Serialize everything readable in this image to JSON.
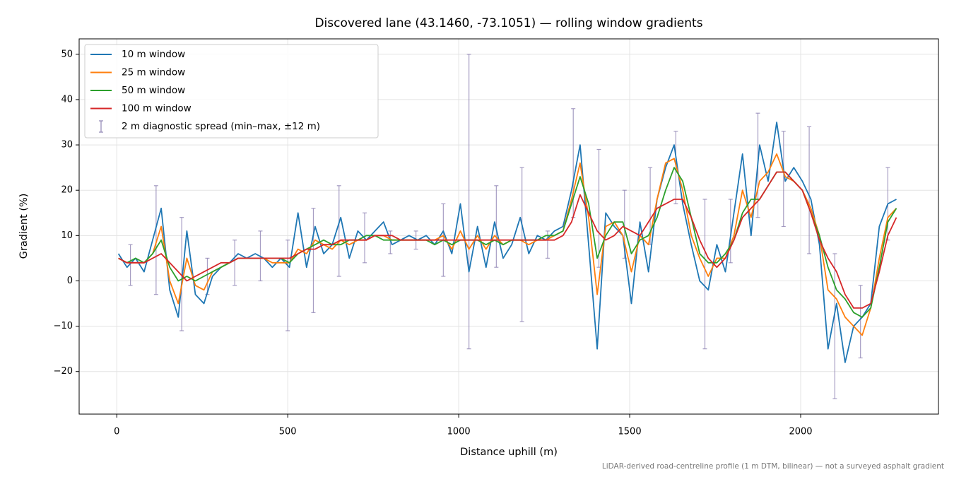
{
  "chart_data": {
    "type": "line",
    "title": "Discovered lane (43.1460, -73.1051) — rolling window gradients",
    "x_label": "Distance uphill (m)",
    "y_label": "Gradient (%)",
    "footnote": "LiDAR-derived road-centreline profile (1 m DTM, bilinear) — not a surveyed asphalt gradient",
    "xlim": [
      -110,
      2403
    ],
    "ylim": [
      -29.4,
      53.4
    ],
    "xticks": [
      0,
      500,
      1000,
      1500,
      2000
    ],
    "yticks": [
      {
        "value": -20,
        "label": "−20"
      },
      {
        "value": -10,
        "label": "−10"
      },
      0,
      10,
      20,
      30,
      40,
      50
    ],
    "grid": true,
    "legend": "upper left",
    "x": [
      5,
      30,
      55,
      80,
      105,
      130,
      155,
      180,
      205,
      230,
      255,
      280,
      305,
      330,
      355,
      380,
      405,
      430,
      455,
      480,
      505,
      530,
      555,
      580,
      605,
      630,
      655,
      680,
      705,
      730,
      755,
      780,
      805,
      830,
      855,
      880,
      905,
      930,
      955,
      980,
      1005,
      1030,
      1055,
      1080,
      1105,
      1130,
      1155,
      1180,
      1205,
      1230,
      1255,
      1280,
      1305,
      1330,
      1355,
      1380,
      1405,
      1430,
      1455,
      1480,
      1505,
      1530,
      1555,
      1580,
      1605,
      1630,
      1655,
      1680,
      1705,
      1730,
      1755,
      1780,
      1805,
      1830,
      1855,
      1880,
      1905,
      1930,
      1955,
      1980,
      2005,
      2030,
      2055,
      2080,
      2105,
      2130,
      2155,
      2180,
      2205,
      2230,
      2255,
      2280
    ],
    "series": [
      {
        "name": "10 m window",
        "color": "#1f77b4",
        "values": [
          6,
          3,
          5,
          2,
          9,
          16,
          -2,
          -8,
          11,
          -3,
          -5,
          1,
          3,
          4,
          6,
          5,
          6,
          5,
          3,
          5,
          3,
          15,
          3,
          12,
          6,
          8,
          14,
          5,
          11,
          9,
          11,
          13,
          8,
          9,
          10,
          9,
          10,
          8,
          11,
          6,
          17,
          2,
          12,
          3,
          13,
          5,
          8,
          14,
          6,
          10,
          9,
          11,
          12,
          20,
          30,
          8,
          -15,
          15,
          12,
          10,
          -5,
          13,
          2,
          18,
          25,
          30,
          17,
          8,
          0,
          -2,
          8,
          2,
          15,
          28,
          10,
          30,
          22,
          35,
          22,
          25,
          22,
          18,
          8,
          -15,
          -5,
          -18,
          -10,
          -8,
          -5,
          12,
          17,
          18
        ]
      },
      {
        "name": "25 m window",
        "color": "#ff7f0e",
        "values": [
          5,
          4,
          4,
          4,
          6,
          12,
          0,
          -5,
          5,
          -1,
          -2,
          2,
          3,
          4,
          5,
          5,
          5,
          5,
          4,
          4,
          4,
          7,
          6,
          9,
          8,
          7,
          9,
          8,
          9,
          9,
          10,
          10,
          9,
          9,
          9,
          9,
          9,
          9,
          10,
          7,
          11,
          7,
          10,
          7,
          10,
          8,
          9,
          9,
          8,
          9,
          9,
          10,
          11,
          18,
          26,
          14,
          -3,
          12,
          13,
          10,
          2,
          10,
          8,
          18,
          26,
          27,
          20,
          10,
          5,
          1,
          5,
          5,
          10,
          20,
          14,
          22,
          24,
          28,
          23,
          22,
          20,
          16,
          10,
          -2,
          -4,
          -8,
          -10,
          -12,
          -6,
          5,
          14,
          16
        ]
      },
      {
        "name": "50 m window",
        "color": "#2ca02c",
        "values": [
          5,
          4,
          5,
          4,
          6,
          9,
          3,
          0,
          1,
          0,
          1,
          2,
          3,
          4,
          5,
          5,
          5,
          5,
          5,
          5,
          4,
          6,
          7,
          8,
          9,
          8,
          8,
          9,
          9,
          10,
          10,
          9,
          9,
          9,
          9,
          9,
          9,
          8,
          9,
          8,
          9,
          9,
          9,
          8,
          9,
          8,
          9,
          9,
          9,
          9,
          10,
          10,
          11,
          17,
          23,
          17,
          5,
          10,
          13,
          13,
          6,
          9,
          10,
          14,
          20,
          25,
          22,
          14,
          6,
          4,
          4,
          6,
          9,
          15,
          18,
          18,
          21,
          24,
          24,
          22,
          20,
          15,
          10,
          3,
          -2,
          -4,
          -7,
          -8,
          -6,
          3,
          13,
          16
        ]
      },
      {
        "name": "100 m window",
        "color": "#d62728",
        "values": [
          5,
          4,
          4,
          4,
          5,
          6,
          4,
          2,
          0,
          1,
          2,
          3,
          4,
          4,
          5,
          5,
          5,
          5,
          5,
          5,
          5,
          6,
          7,
          7,
          8,
          8,
          9,
          9,
          9,
          9,
          10,
          10,
          10,
          9,
          9,
          9,
          9,
          9,
          9,
          9,
          9,
          9,
          9,
          9,
          9,
          9,
          9,
          9,
          9,
          9,
          9,
          9,
          10,
          13,
          19,
          15,
          11,
          9,
          10,
          12,
          11,
          10,
          13,
          16,
          17,
          18,
          18,
          14,
          9,
          5,
          3,
          5,
          9,
          14,
          16,
          18,
          21,
          24,
          24,
          22,
          20,
          15,
          9,
          5,
          2,
          -3,
          -6,
          -6,
          -5,
          2,
          10,
          14
        ]
      }
    ],
    "errorbars": {
      "name": "2 m diagnostic spread (min–max, ±12 m)",
      "color": "#9085b5",
      "x": [
        40,
        115,
        190,
        265,
        345,
        420,
        500,
        575,
        650,
        725,
        800,
        875,
        955,
        1030,
        1110,
        1185,
        1260,
        1335,
        1410,
        1485,
        1560,
        1635,
        1720,
        1795,
        1875,
        1950,
        2025,
        2100,
        2175,
        2255
      ],
      "low": [
        -1,
        -3,
        -11,
        -3,
        -1,
        0,
        -11,
        -7,
        1,
        4,
        6,
        7,
        1,
        -15,
        3,
        -9,
        5,
        14,
        3,
        5,
        8,
        17,
        -15,
        4,
        14,
        12,
        6,
        -26,
        -17,
        9
      ],
      "high": [
        8,
        21,
        14,
        5,
        9,
        11,
        9,
        16,
        21,
        15,
        11,
        11,
        17,
        50,
        21,
        25,
        11,
        38,
        29,
        20,
        25,
        33,
        18,
        18,
        37,
        33,
        34,
        6,
        -1,
        25
      ]
    }
  }
}
